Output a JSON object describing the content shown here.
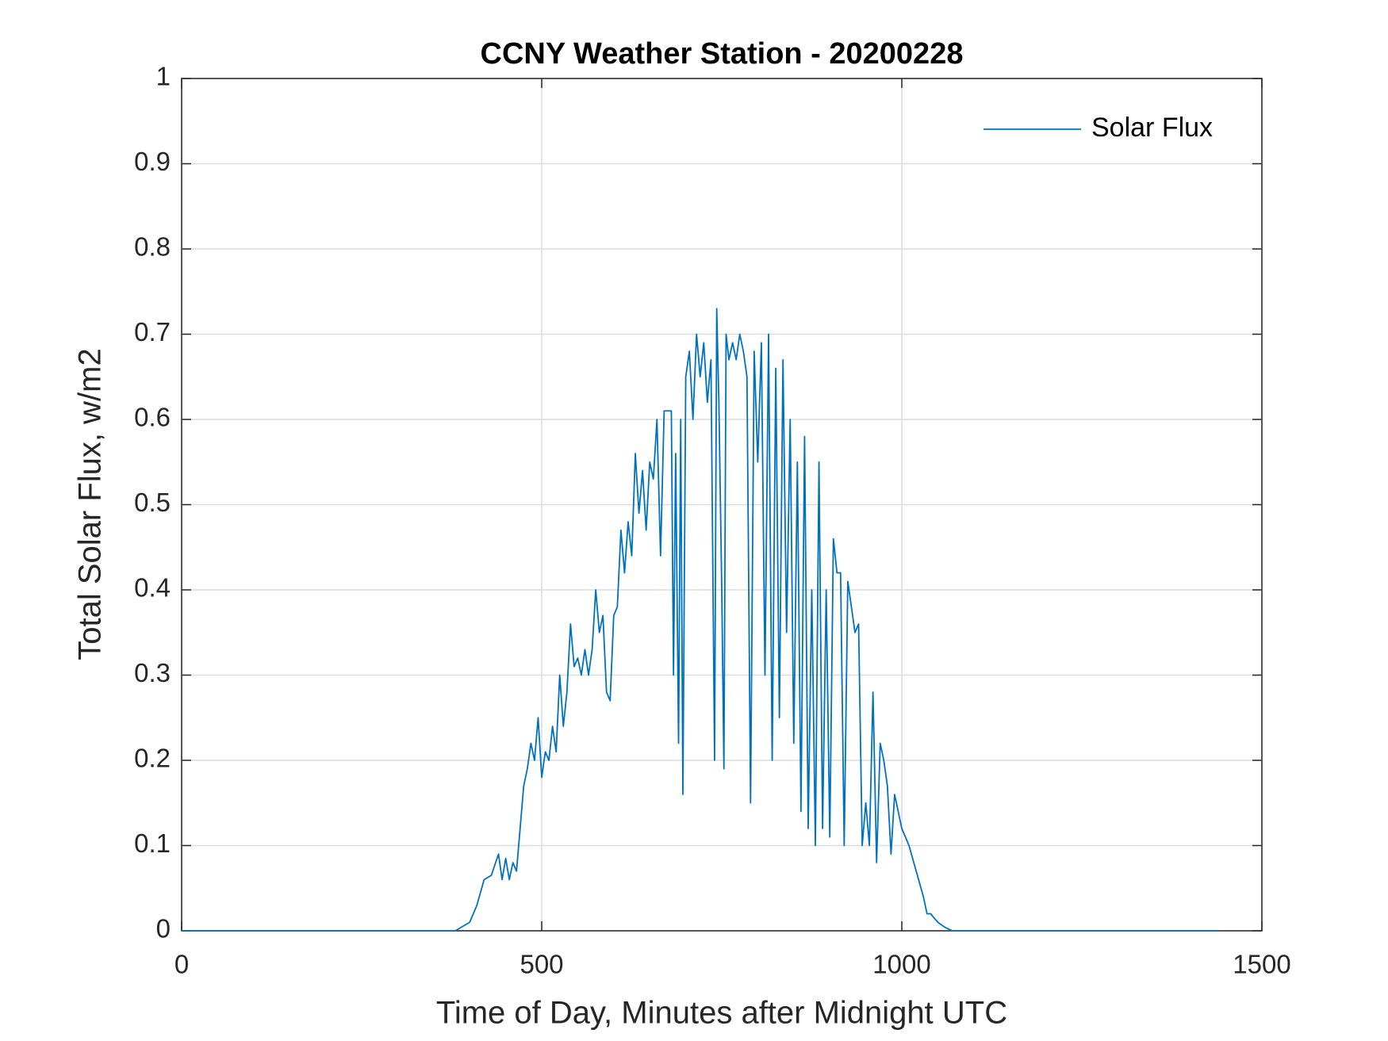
{
  "chart_data": {
    "type": "line",
    "title": "CCNY Weather Station - 20200228",
    "xlabel": "Time of Day, Minutes after Midnight UTC",
    "ylabel": "Total Solar Flux, w/m2",
    "x": [
      0,
      380,
      400,
      410,
      420,
      430,
      440,
      445,
      450,
      455,
      460,
      465,
      470,
      475,
      480,
      485,
      490,
      495,
      500,
      505,
      510,
      515,
      520,
      525,
      530,
      535,
      540,
      545,
      550,
      555,
      560,
      565,
      570,
      575,
      580,
      585,
      590,
      595,
      600,
      605,
      610,
      615,
      620,
      625,
      630,
      635,
      640,
      645,
      650,
      655,
      660,
      665,
      670,
      675,
      680,
      683,
      686,
      690,
      693,
      696,
      700,
      705,
      710,
      715,
      720,
      725,
      730,
      735,
      740,
      743,
      746,
      750,
      753,
      756,
      760,
      765,
      770,
      775,
      780,
      785,
      790,
      795,
      800,
      805,
      810,
      815,
      820,
      825,
      830,
      835,
      840,
      845,
      850,
      855,
      860,
      865,
      870,
      875,
      880,
      885,
      890,
      895,
      900,
      905,
      910,
      915,
      920,
      925,
      930,
      935,
      940,
      945,
      950,
      955,
      960,
      965,
      970,
      975,
      980,
      985,
      990,
      995,
      1000,
      1010,
      1020,
      1030,
      1035,
      1040,
      1050,
      1060,
      1070,
      1440
    ],
    "series": [
      {
        "name": "Solar Flux",
        "color": "#0072bd",
        "values": [
          0,
          0,
          0.01,
          0.03,
          0.06,
          0.065,
          0.09,
          0.06,
          0.085,
          0.06,
          0.08,
          0.07,
          0.12,
          0.17,
          0.19,
          0.22,
          0.2,
          0.25,
          0.18,
          0.21,
          0.2,
          0.24,
          0.21,
          0.3,
          0.24,
          0.28,
          0.36,
          0.31,
          0.32,
          0.3,
          0.33,
          0.3,
          0.33,
          0.4,
          0.35,
          0.37,
          0.28,
          0.27,
          0.37,
          0.38,
          0.47,
          0.42,
          0.48,
          0.44,
          0.56,
          0.49,
          0.54,
          0.47,
          0.55,
          0.53,
          0.6,
          0.44,
          0.61,
          0.61,
          0.61,
          0.3,
          0.56,
          0.22,
          0.6,
          0.16,
          0.65,
          0.68,
          0.6,
          0.7,
          0.65,
          0.69,
          0.62,
          0.67,
          0.2,
          0.73,
          0.62,
          0.4,
          0.19,
          0.7,
          0.67,
          0.69,
          0.67,
          0.7,
          0.68,
          0.65,
          0.15,
          0.68,
          0.55,
          0.69,
          0.3,
          0.7,
          0.2,
          0.66,
          0.25,
          0.67,
          0.35,
          0.6,
          0.22,
          0.55,
          0.14,
          0.58,
          0.12,
          0.4,
          0.1,
          0.55,
          0.12,
          0.4,
          0.11,
          0.46,
          0.42,
          0.42,
          0.1,
          0.41,
          0.38,
          0.35,
          0.36,
          0.1,
          0.15,
          0.1,
          0.28,
          0.08,
          0.22,
          0.2,
          0.17,
          0.09,
          0.16,
          0.14,
          0.12,
          0.1,
          0.07,
          0.04,
          0.02,
          0.02,
          0.01,
          0.004,
          0,
          0
        ]
      }
    ],
    "xlim": [
      0,
      1500
    ],
    "xticks": [
      0,
      500,
      1000,
      1500
    ],
    "ylim": [
      0,
      1
    ],
    "yticks": [
      0,
      0.1,
      0.2,
      0.3,
      0.4,
      0.5,
      0.6,
      0.7,
      0.8,
      0.9,
      1
    ],
    "grid": true,
    "legend": "northeast"
  }
}
